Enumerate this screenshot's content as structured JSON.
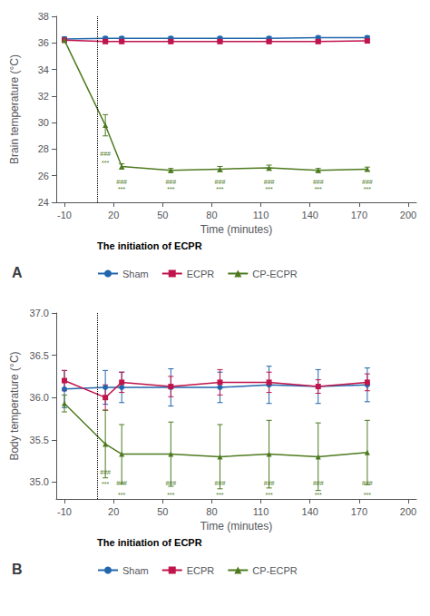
{
  "chart_data": [
    {
      "type": "line",
      "title": "A",
      "xlabel": "Time (minutes)",
      "ylabel": "Brain temperature (°C)",
      "x": [
        -10,
        15,
        25,
        55,
        85,
        115,
        145,
        175
      ],
      "series": [
        {
          "name": "Sham",
          "color": "#2166ac",
          "marker": "circle",
          "values": [
            36.3,
            36.35,
            36.35,
            36.35,
            36.35,
            36.35,
            36.4,
            36.4
          ],
          "errors": [
            0.15,
            0.12,
            0.12,
            0.12,
            0.12,
            0.12,
            0.12,
            0.12
          ]
        },
        {
          "name": "ECPR",
          "color": "#c0144c",
          "marker": "square",
          "values": [
            36.2,
            36.1,
            36.1,
            36.1,
            36.1,
            36.1,
            36.1,
            36.15
          ],
          "errors": [
            0.12,
            0.1,
            0.1,
            0.1,
            0.1,
            0.1,
            0.1,
            0.1
          ]
        },
        {
          "name": "CP-ECPR",
          "color": "#4d7a1f",
          "marker": "triangle",
          "values": [
            36.2,
            29.8,
            26.7,
            26.4,
            26.5,
            26.6,
            26.4,
            26.5
          ],
          "errors": [
            0.15,
            0.8,
            0.2,
            0.15,
            0.2,
            0.2,
            0.15,
            0.15
          ]
        }
      ],
      "xlim": [
        -15,
        205
      ],
      "xticks": [
        -10,
        20,
        50,
        80,
        110,
        140,
        170,
        200
      ],
      "ylim": [
        24,
        38
      ],
      "yticks": [
        24,
        26,
        28,
        30,
        32,
        34,
        36,
        38
      ],
      "vline": {
        "x": 10,
        "label": "The initiation of ECPR",
        "line_style": "dotted",
        "color": "#000000"
      },
      "annotations": [
        {
          "text": "###",
          "x": 15,
          "y": 27.4,
          "color": "#4d7a1f"
        },
        {
          "text": "###",
          "x": 25,
          "y": 25.3,
          "color": "#4d7a1f"
        },
        {
          "text": "###",
          "x": 55,
          "y": 25.3,
          "color": "#4d7a1f"
        },
        {
          "text": "###",
          "x": 85,
          "y": 25.3,
          "color": "#4d7a1f"
        },
        {
          "text": "###",
          "x": 115,
          "y": 25.3,
          "color": "#4d7a1f"
        },
        {
          "text": "###",
          "x": 145,
          "y": 25.3,
          "color": "#4d7a1f"
        },
        {
          "text": "###",
          "x": 175,
          "y": 25.3,
          "color": "#4d7a1f"
        },
        {
          "text": "***",
          "x": 15,
          "y": 26.7,
          "color": "#4d7a1f"
        },
        {
          "text": "***",
          "x": 25,
          "y": 24.75,
          "color": "#4d7a1f"
        },
        {
          "text": "***",
          "x": 55,
          "y": 24.75,
          "color": "#4d7a1f"
        },
        {
          "text": "***",
          "x": 85,
          "y": 24.75,
          "color": "#4d7a1f"
        },
        {
          "text": "***",
          "x": 115,
          "y": 24.75,
          "color": "#4d7a1f"
        },
        {
          "text": "***",
          "x": 145,
          "y": 24.75,
          "color": "#4d7a1f"
        },
        {
          "text": "***",
          "x": 175,
          "y": 24.75,
          "color": "#4d7a1f"
        }
      ],
      "legend": "bottom",
      "grid": false
    },
    {
      "type": "line",
      "title": "B",
      "xlabel": "Time (minutes)",
      "ylabel": "Body temperature (°C)",
      "x": [
        -10,
        15,
        25,
        55,
        85,
        115,
        145,
        175
      ],
      "series": [
        {
          "name": "Sham",
          "color": "#2166ac",
          "marker": "circle",
          "values": [
            36.1,
            36.12,
            36.12,
            36.12,
            36.12,
            36.15,
            36.13,
            36.15
          ],
          "errors": [
            0.22,
            0.2,
            0.18,
            0.22,
            0.18,
            0.22,
            0.2,
            0.2
          ]
        },
        {
          "name": "ECPR",
          "color": "#c0144c",
          "marker": "square",
          "values": [
            36.2,
            36.0,
            36.18,
            36.13,
            36.18,
            36.18,
            36.13,
            36.18
          ],
          "errors": [
            0.12,
            0.15,
            0.12,
            0.12,
            0.15,
            0.12,
            0.08,
            0.1
          ]
        },
        {
          "name": "CP-ECPR",
          "color": "#4d7a1f",
          "marker": "triangle",
          "values": [
            35.93,
            35.45,
            35.33,
            35.33,
            35.3,
            35.33,
            35.3,
            35.35
          ],
          "errors": [
            0.1,
            0.4,
            0.35,
            0.38,
            0.38,
            0.4,
            0.4,
            0.38
          ]
        }
      ],
      "xlim": [
        -15,
        205
      ],
      "xticks": [
        -10,
        20,
        50,
        80,
        110,
        140,
        170,
        200
      ],
      "ylim": [
        34.8,
        37.0
      ],
      "yticks": [
        {
          "value": 35.0,
          "label": "35.0"
        },
        {
          "value": 35.5,
          "label": "35.5"
        },
        {
          "value": 36.0,
          "label": "36.0"
        },
        {
          "value": 36.5,
          "label": "36.5"
        },
        {
          "value": 37.0,
          "label": "37.0"
        }
      ],
      "vline": {
        "x": 10,
        "label": "The initiation of ECPR",
        "line_style": "dotted",
        "color": "#000000"
      },
      "annotations": [
        {
          "text": "###",
          "x": 15,
          "y": 35.08,
          "color": "#4d7a1f"
        },
        {
          "text": "###",
          "x": 25,
          "y": 34.95,
          "color": "#4d7a1f"
        },
        {
          "text": "###",
          "x": 55,
          "y": 34.95,
          "color": "#4d7a1f"
        },
        {
          "text": "###",
          "x": 85,
          "y": 34.95,
          "color": "#4d7a1f"
        },
        {
          "text": "###",
          "x": 115,
          "y": 34.95,
          "color": "#4d7a1f"
        },
        {
          "text": "###",
          "x": 145,
          "y": 34.95,
          "color": "#4d7a1f"
        },
        {
          "text": "###",
          "x": 175,
          "y": 34.95,
          "color": "#4d7a1f"
        },
        {
          "text": "***",
          "x": 15,
          "y": 34.94,
          "color": "#4d7a1f"
        },
        {
          "text": "***",
          "x": 25,
          "y": 34.81,
          "color": "#4d7a1f"
        },
        {
          "text": "***",
          "x": 55,
          "y": 34.81,
          "color": "#4d7a1f"
        },
        {
          "text": "***",
          "x": 85,
          "y": 34.81,
          "color": "#4d7a1f"
        },
        {
          "text": "***",
          "x": 115,
          "y": 34.81,
          "color": "#4d7a1f"
        },
        {
          "text": "***",
          "x": 145,
          "y": 34.81,
          "color": "#4d7a1f"
        },
        {
          "text": "***",
          "x": 175,
          "y": 34.81,
          "color": "#4d7a1f"
        }
      ],
      "legend": "bottom",
      "grid": false
    }
  ]
}
